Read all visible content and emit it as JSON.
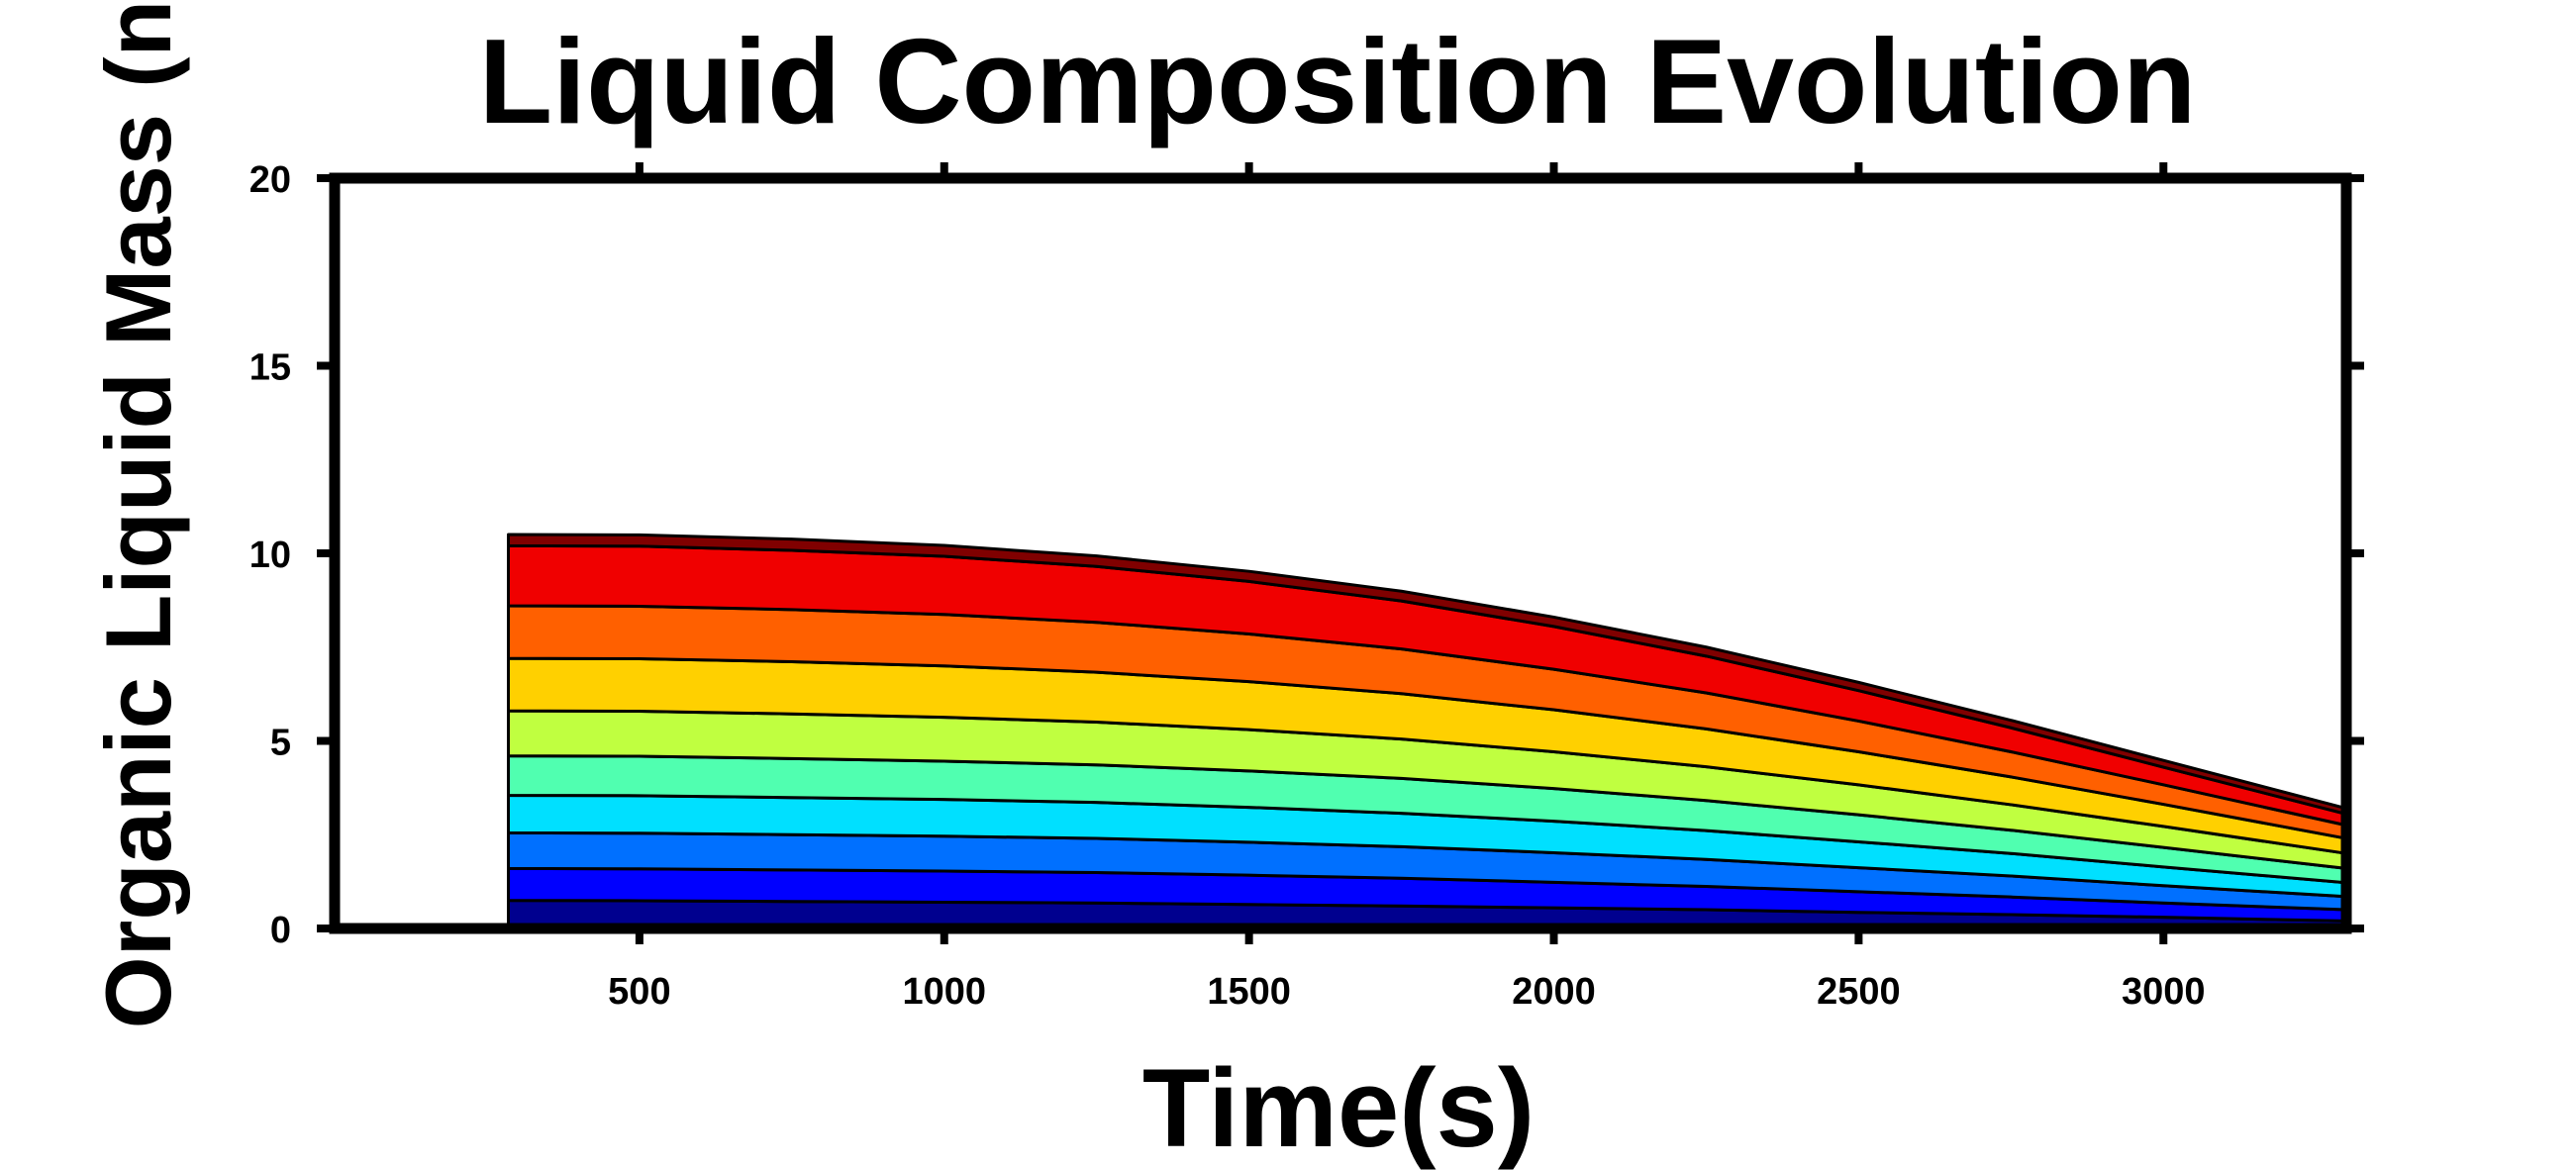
{
  "chart_data": {
    "type": "area",
    "stacked": true,
    "title": "Liquid Composition Evolution",
    "xlabel": "Time(s)",
    "ylabel": "Organic Liquid Mass (n",
    "xlim": [
      0,
      3300
    ],
    "ylim": [
      0,
      20
    ],
    "x_ticks": [
      500,
      1000,
      1500,
      2000,
      2500,
      3000
    ],
    "y_ticks": [
      0,
      5,
      10,
      15,
      20
    ],
    "grid": false,
    "legend": "none",
    "x": [
      285,
      500,
      750,
      1000,
      1250,
      1500,
      1750,
      2000,
      2250,
      2500,
      2750,
      3000,
      3300
    ],
    "series": [
      {
        "color": "#00008f",
        "values": [
          0.75,
          0.74,
          0.72,
          0.7,
          0.68,
          0.64,
          0.6,
          0.55,
          0.5,
          0.43,
          0.37,
          0.3,
          0.2
        ]
      },
      {
        "color": "#0000ff",
        "values": [
          0.85,
          0.85,
          0.84,
          0.83,
          0.81,
          0.78,
          0.74,
          0.68,
          0.62,
          0.55,
          0.47,
          0.38,
          0.3
        ]
      },
      {
        "color": "#0070ff",
        "values": [
          0.95,
          0.95,
          0.94,
          0.93,
          0.91,
          0.88,
          0.84,
          0.79,
          0.72,
          0.64,
          0.56,
          0.46,
          0.35
        ]
      },
      {
        "color": "#00e0ff",
        "values": [
          1.0,
          1.0,
          0.99,
          0.98,
          0.96,
          0.93,
          0.89,
          0.84,
          0.77,
          0.69,
          0.6,
          0.5,
          0.37
        ]
      },
      {
        "color": "#50ffb0",
        "values": [
          1.05,
          1.05,
          1.04,
          1.02,
          1.0,
          0.97,
          0.93,
          0.87,
          0.8,
          0.72,
          0.62,
          0.52,
          0.38
        ]
      },
      {
        "color": "#c0ff40",
        "values": [
          1.2,
          1.2,
          1.19,
          1.17,
          1.14,
          1.1,
          1.05,
          0.98,
          0.9,
          0.8,
          0.68,
          0.56,
          0.4
        ]
      },
      {
        "color": "#ffd000",
        "values": [
          1.4,
          1.4,
          1.39,
          1.37,
          1.33,
          1.28,
          1.21,
          1.12,
          1.01,
          0.88,
          0.74,
          0.59,
          0.4
        ]
      },
      {
        "color": "#ff6000",
        "values": [
          1.4,
          1.4,
          1.39,
          1.37,
          1.33,
          1.27,
          1.19,
          1.08,
          0.96,
          0.82,
          0.67,
          0.52,
          0.35
        ]
      },
      {
        "color": "#f00000",
        "values": [
          1.6,
          1.6,
          1.58,
          1.55,
          1.49,
          1.4,
          1.28,
          1.14,
          0.98,
          0.81,
          0.64,
          0.47,
          0.3
        ]
      },
      {
        "color": "#800000",
        "values": [
          0.3,
          0.3,
          0.3,
          0.29,
          0.28,
          0.27,
          0.26,
          0.25,
          0.24,
          0.22,
          0.2,
          0.18,
          0.15
        ]
      }
    ]
  }
}
